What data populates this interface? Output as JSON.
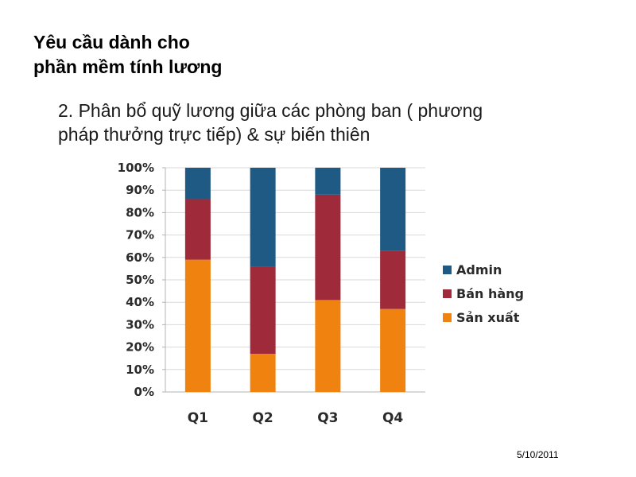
{
  "slide": {
    "title_lines": [
      "Yêu cầu dành cho",
      "phần mềm tính lương"
    ],
    "subtitle_lines": [
      "2. Phân bổ quỹ lương giữa các phòng ban ( phương",
      "pháp thưởng trực tiếp) & sự biến thiên"
    ],
    "date": "5/10/2011"
  },
  "chart_data": {
    "type": "bar",
    "stacked": true,
    "percent": true,
    "categories": [
      "Q1",
      "Q2",
      "Q3",
      "Q4"
    ],
    "series": [
      {
        "name": "Sản xuất",
        "color": "#f0830f",
        "values": [
          59,
          17,
          41,
          37
        ]
      },
      {
        "name": "Bán hàng",
        "color": "#9e2a3a",
        "values": [
          27,
          39,
          47,
          26
        ]
      },
      {
        "name": "Admin",
        "color": "#1e5a84",
        "values": [
          14,
          44,
          12,
          37
        ]
      }
    ],
    "ylim": [
      0,
      100
    ],
    "yticks": [
      "0%",
      "10%",
      "20%",
      "30%",
      "40%",
      "50%",
      "60%",
      "70%",
      "80%",
      "90%",
      "100%"
    ],
    "grid": true,
    "legend_position": "right",
    "legend_order": [
      "Admin",
      "Bán hàng",
      "Sản xuất"
    ]
  }
}
